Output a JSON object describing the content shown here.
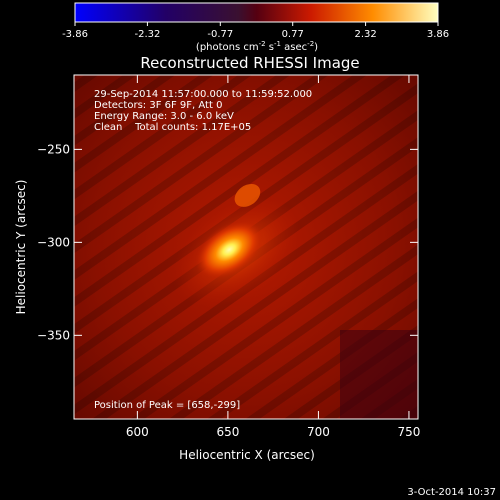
{
  "colorbar": {
    "ticks": [
      "-3.86",
      "-2.32",
      "-0.77",
      "0.77",
      "2.32",
      "3.86"
    ],
    "tick_values": [
      -3.86,
      -2.32,
      -0.77,
      0.77,
      2.32,
      3.86
    ],
    "range": [
      -3.86,
      3.86
    ],
    "unit_prefix": "(photons cm",
    "unit_exp1": "-2",
    "unit_mid": " s",
    "unit_exp2": "-1",
    "unit_mid2": " asec",
    "unit_exp3": "-2",
    "unit_suffix": ")"
  },
  "chart_data": {
    "type": "heatmap",
    "title": "Reconstructed RHESSI Image",
    "xlabel": "Heliocentric X (arcsec)",
    "ylabel": "Heliocentric Y (arcsec)",
    "xlim": [
      565,
      755
    ],
    "ylim": [
      -395,
      -210
    ],
    "x_ticks": [
      600,
      650,
      700,
      750
    ],
    "x_tick_labels": [
      "600",
      "650",
      "700",
      "750"
    ],
    "y_ticks": [
      -250,
      -300,
      -350
    ],
    "y_tick_labels": [
      "−250",
      "−300",
      "−350"
    ],
    "peak": {
      "x": 658,
      "y": -299
    },
    "colormap": "hot-red",
    "annotations": {
      "line1": "29-Sep-2014 11:57:00.000 to 11:59:52.000",
      "line2": "Detectors: 3F 6F 9F, Att 0",
      "line3": "Energy Range: 3.0 - 6.0 keV",
      "line4": "Clean    Total counts: 1.17E+05",
      "peak_label": "Position of Peak = [658,-299]"
    }
  },
  "footer": {
    "date": "3-Oct-2014 10:37"
  }
}
